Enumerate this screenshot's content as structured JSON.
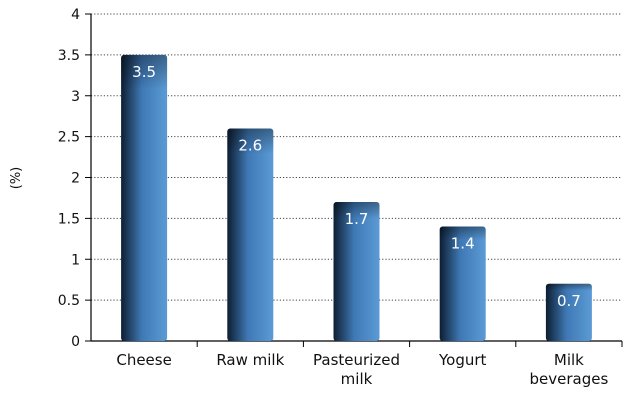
{
  "chart_data": {
    "type": "bar",
    "categories": [
      [
        "Cheese"
      ],
      [
        "Raw milk"
      ],
      [
        "Pasteurized",
        "milk"
      ],
      [
        "Yogurt"
      ],
      [
        "Milk",
        "beverages"
      ]
    ],
    "values": [
      3.5,
      2.6,
      1.7,
      1.4,
      0.7
    ],
    "value_labels": [
      "3.5",
      "2.6",
      "1.7",
      "1.4",
      "0.7"
    ],
    "ylabel": "(%)",
    "xlabel": "",
    "title": "",
    "ylim": [
      0,
      4
    ],
    "yticks": [
      0,
      0.5,
      1,
      1.5,
      2,
      2.5,
      3,
      3.5,
      4
    ],
    "ytick_labels": [
      "0",
      "0.5",
      "1",
      "1.5",
      "2",
      "2.5",
      "3",
      "3.5",
      "4"
    ],
    "grid": "horizontal dotted",
    "bar_colors": {
      "light": "#5b9bd5",
      "dark": "#0d1e33"
    }
  }
}
